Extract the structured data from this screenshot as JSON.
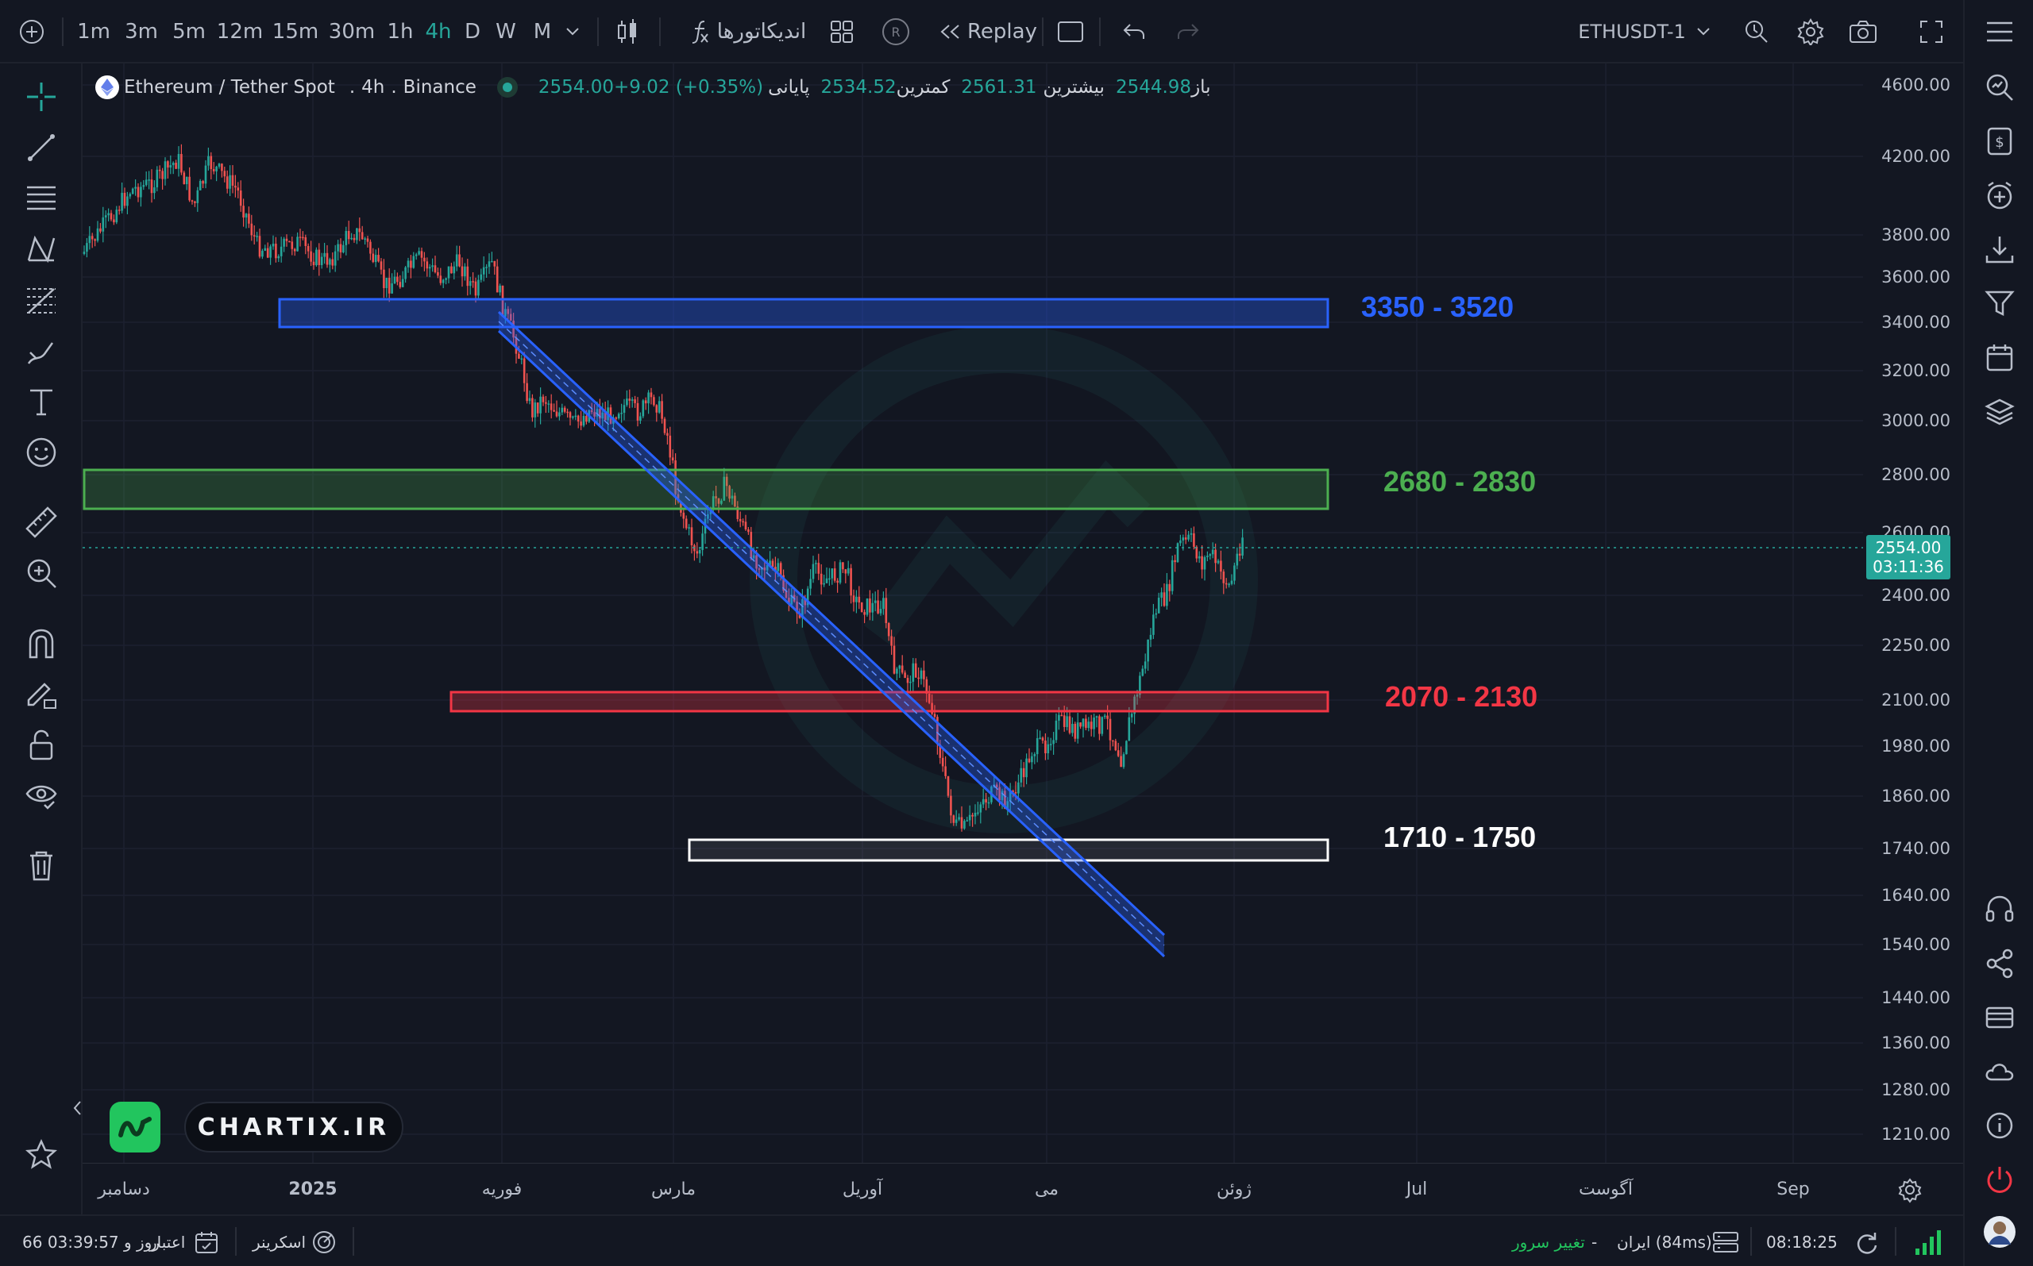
{
  "toolbar": {
    "intervals": [
      "1m",
      "3m",
      "5m",
      "12m",
      "15m",
      "30m",
      "1h",
      "4h",
      "D",
      "W",
      "M"
    ],
    "active_interval": "4h",
    "indicators_label": "اندیکاتورها",
    "replay_label": "Replay",
    "symbol": "ETHUSDT-1",
    "accent_color": "#26a69a"
  },
  "legend": {
    "title": "Ethereum / Tether Spot",
    "timeframe": "4h",
    "exchange": "Binance",
    "open_label": "باز",
    "open_value": "2544.98",
    "high_label": "بیشترین",
    "high_value": "2561.31",
    "low_label": "کمترین",
    "low_value": "2534.52",
    "close_label": "پایانی",
    "close_value": "2554.00",
    "change": "+9.02 (+0.35%)"
  },
  "price_axis": [
    "4600.00",
    "4200.00",
    "3800.00",
    "3600.00",
    "3400.00",
    "3200.00",
    "3000.00",
    "2800.00",
    "2600.00",
    "2400.00",
    "2250.00",
    "2100.00",
    "1980.00",
    "1860.00",
    "1740.00",
    "1640.00",
    "1540.00",
    "1440.00",
    "1360.00",
    "1280.00",
    "1210.00"
  ],
  "current_price": {
    "price": "2554.00",
    "countdown": "03:11:36"
  },
  "time_axis": [
    "دسامبر",
    "2025",
    "فوریه",
    "مارس",
    "آوریل",
    "می",
    "ژوئن",
    "Jul",
    "آگوست",
    "Sep"
  ],
  "zones": [
    {
      "label": "3350 - 3520",
      "color": "#2962ff"
    },
    {
      "label": "2680 - 2830",
      "color": "#4caf50"
    },
    {
      "label": "2070 - 2130",
      "color": "#f23645"
    },
    {
      "label": "1710 - 1750",
      "color": "#ffffff"
    }
  ],
  "watermark": {
    "brand": "CHARTIX.IR"
  },
  "bottombar": {
    "credit_label": "اعتبار",
    "credit_value": "66 روز و 03:39:57",
    "screener_label": "اسکرینر",
    "change_server": "تغییر سرور",
    "server": "ایران (84ms)",
    "dash": "-",
    "clock": "08:18:25"
  },
  "colors": {
    "up": "#26a69a",
    "down": "#ef5350",
    "background": "#131722"
  }
}
